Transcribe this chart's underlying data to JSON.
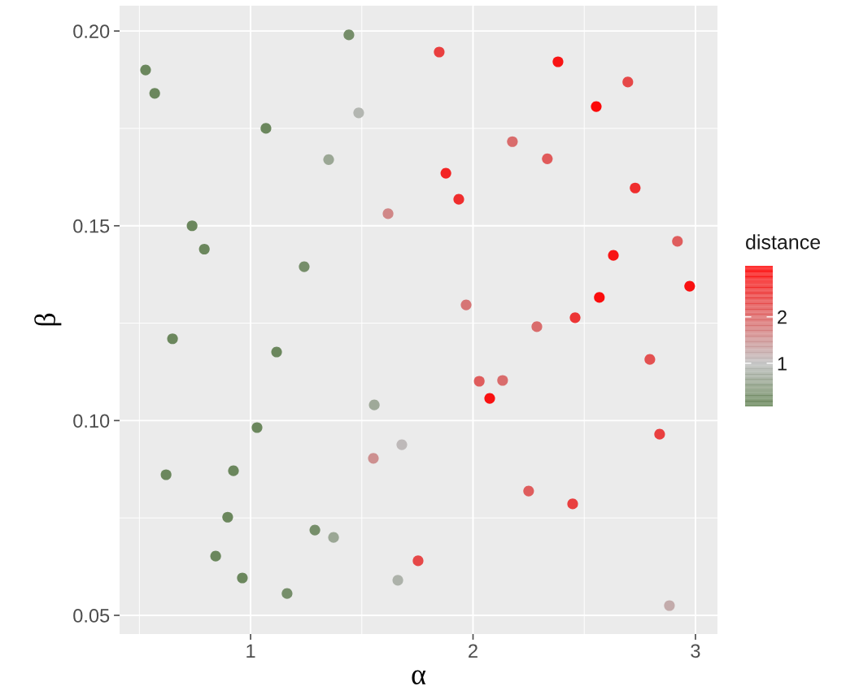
{
  "chart_data": {
    "type": "scatter",
    "xlabel": "α",
    "ylabel": "β",
    "clabel": "distance",
    "xlim": [
      0.411,
      3.099
    ],
    "ylim": [
      0.0452,
      0.2065
    ],
    "xticks": [
      1,
      2,
      3
    ],
    "yticks": [
      {
        "value": 0.05,
        "label": "0.05"
      },
      {
        "value": 0.1,
        "label": "0.10"
      },
      {
        "value": 0.15,
        "label": "0.15"
      },
      {
        "value": 0.2,
        "label": "0.20"
      }
    ],
    "clim": [
      0.07,
      3.1
    ],
    "cticks": [
      1,
      2
    ],
    "grid": true,
    "marker": "circle",
    "x": [
      0.528,
      0.569,
      1.442,
      1.069,
      1.486,
      1.351,
      0.737,
      0.792,
      1.241,
      0.649,
      1.117,
      1.556,
      1.029,
      0.62,
      0.923,
      0.897,
      1.289,
      1.373,
      0.843,
      0.963,
      1.164,
      1.662,
      1.552,
      1.68,
      1.753,
      1.848,
      1.878,
      1.936,
      1.618,
      1.969,
      2.177,
      2.334,
      2.382,
      2.554,
      2.696,
      2.729,
      2.631,
      2.568,
      2.919,
      2.974,
      2.459,
      2.287,
      2.795,
      2.028,
      2.133,
      2.075,
      2.839,
      2.25,
      2.448,
      2.883
    ],
    "values": [
      0.19,
      0.184,
      0.199,
      0.175,
      0.179,
      0.167,
      0.15,
      0.144,
      0.1395,
      0.121,
      0.1176,
      0.104,
      0.0982,
      0.0861,
      0.0871,
      0.0752,
      0.0719,
      0.07,
      0.0652,
      0.0596,
      0.0556,
      0.059,
      0.0903,
      0.0938,
      0.064,
      0.1946,
      0.1635,
      0.1568,
      0.1531,
      0.1297,
      0.1716,
      0.1672,
      0.1921,
      0.1806,
      0.1869,
      0.1597,
      0.1424,
      0.1316,
      0.146,
      0.1345,
      0.1264,
      0.1241,
      0.1157,
      0.1101,
      0.1103,
      0.1057,
      0.0965,
      0.0819,
      0.0786,
      0.0525
    ],
    "cvalues": [
      0.2,
      0.2,
      0.3,
      0.2,
      0.9,
      0.67,
      0.2,
      0.2,
      0.3,
      0.2,
      0.2,
      0.7,
      0.2,
      0.2,
      0.2,
      0.2,
      0.3,
      0.67,
      0.2,
      0.2,
      0.3,
      0.85,
      1.5,
      1.05,
      2.3,
      2.4,
      2.7,
      2.6,
      1.6,
      1.8,
      1.9,
      2.1,
      2.87,
      3.0,
      2.3,
      2.6,
      2.87,
      2.95,
      2.07,
      2.9,
      2.5,
      1.9,
      2.2,
      2.07,
      1.9,
      2.9,
      2.4,
      2.07,
      2.4,
      1.2
    ]
  }
}
